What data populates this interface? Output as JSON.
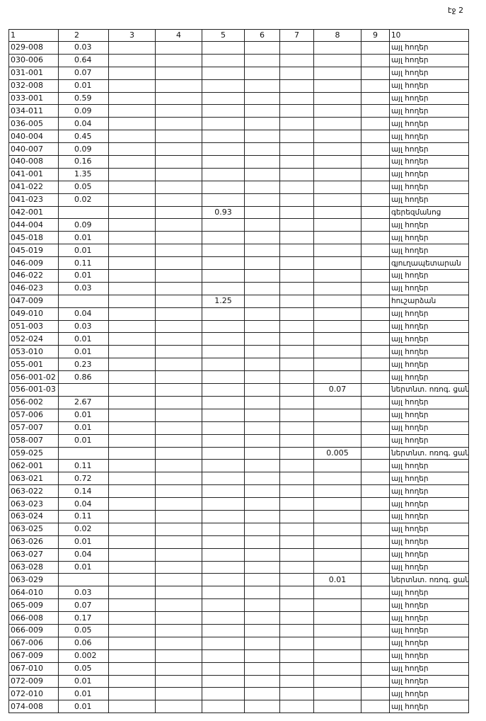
{
  "page_label": "էջ 2",
  "table": {
    "header": [
      "1",
      "2",
      "3",
      "4",
      "5",
      "6",
      "7",
      "8",
      "9",
      "10"
    ],
    "rows": [
      {
        "c1": "029-008",
        "c2": "0.03",
        "c10": "այլ հողեր"
      },
      {
        "c1": "030-006",
        "c2": "0.64",
        "c10": "այլ հողեր"
      },
      {
        "c1": "031-001",
        "c2": "0.07",
        "c10": "այլ հողեր"
      },
      {
        "c1": "032-008",
        "c2": "0.01",
        "c10": "այլ հողեր"
      },
      {
        "c1": "033-001",
        "c2": "0.59",
        "c10": "այլ հողեր"
      },
      {
        "c1": "034-011",
        "c2": "0.09",
        "c10": "այլ հողեր"
      },
      {
        "c1": "036-005",
        "c2": "0.04",
        "c10": "այլ հողեր"
      },
      {
        "c1": "040-004",
        "c2": "0.45",
        "c10": "այլ հողեր"
      },
      {
        "c1": "040-007",
        "c2": "0.09",
        "c10": "այլ հողեր"
      },
      {
        "c1": "040-008",
        "c2": "0.16",
        "c10": "այլ հողեր"
      },
      {
        "c1": "041-001",
        "c2": "1.35",
        "c10": "այլ հողեր"
      },
      {
        "c1": "041-022",
        "c2": "0.05",
        "c10": "այլ հողեր"
      },
      {
        "c1": "041-023",
        "c2": "0.02",
        "c10": "այլ հողեր"
      },
      {
        "c1": "042-001",
        "c5": "0.93",
        "c10": "գերեզմանոց"
      },
      {
        "c1": "044-004",
        "c2": "0.09",
        "c10": "այլ հողեր"
      },
      {
        "c1": "045-018",
        "c2": "0.01",
        "c10": "այլ հողեր"
      },
      {
        "c1": "045-019",
        "c2": "0.01",
        "c10": "այլ հողեր"
      },
      {
        "c1": "046-009",
        "c2": "0.11",
        "c10": "գյուղապետարան"
      },
      {
        "c1": "046-022",
        "c2": "0.01",
        "c10": "այլ հողեր"
      },
      {
        "c1": "046-023",
        "c2": "0.03",
        "c10": "այլ հողեր"
      },
      {
        "c1": "047-009",
        "c5": "1.25",
        "c10": "հուշարձան"
      },
      {
        "c1": "049-010",
        "c2": "0.04",
        "c10": "այլ հողեր"
      },
      {
        "c1": "051-003",
        "c2": "0.03",
        "c10": "այլ հողեր"
      },
      {
        "c1": "052-024",
        "c2": "0.01",
        "c10": "այլ հողեր"
      },
      {
        "c1": "053-010",
        "c2": "0.01",
        "c10": "այլ հողեր"
      },
      {
        "c1": "055-001",
        "c2": "0.23",
        "c10": "այլ հողեր"
      },
      {
        "c1": "056-001-02",
        "c2": "0.86",
        "c10": "այլ հողեր"
      },
      {
        "c1": "056-001-03",
        "c8": "0.07",
        "c10": "ներտնտ. ոռոգ. ցան"
      },
      {
        "c1": "056-002",
        "c2": "2.67",
        "c10": "այլ հողեր"
      },
      {
        "c1": "057-006",
        "c2": "0.01",
        "c10": "այլ հողեր"
      },
      {
        "c1": "057-007",
        "c2": "0.01",
        "c10": "այլ հողեր"
      },
      {
        "c1": "058-007",
        "c2": "0.01",
        "c10": "այլ հողեր"
      },
      {
        "c1": "059-025",
        "c8": "0.005",
        "c10": "ներտնտ. ոռոգ. ցան"
      },
      {
        "c1": "062-001",
        "c2": "0.11",
        "c10": "այլ հողեր"
      },
      {
        "c1": "063-021",
        "c2": "0.72",
        "c10": "այլ հողեր"
      },
      {
        "c1": "063-022",
        "c2": "0.14",
        "c10": "այլ հողեր"
      },
      {
        "c1": "063-023",
        "c2": "0.04",
        "c10": "այլ հողեր"
      },
      {
        "c1": "063-024",
        "c2": "0.11",
        "c10": "այլ հողեր"
      },
      {
        "c1": "063-025",
        "c2": "0.02",
        "c10": "այլ հողեր"
      },
      {
        "c1": "063-026",
        "c2": "0.01",
        "c10": "այլ հողեր"
      },
      {
        "c1": "063-027",
        "c2": "0.04",
        "c10": "այլ հողեր"
      },
      {
        "c1": "063-028",
        "c2": "0.01",
        "c10": "այլ հողեր"
      },
      {
        "c1": "063-029",
        "c8": "0.01",
        "c10": "ներտնտ. ոռոգ. ցան"
      },
      {
        "c1": "064-010",
        "c2": "0.03",
        "c10": "այլ հողեր"
      },
      {
        "c1": "065-009",
        "c2": "0.07",
        "c10": "այլ հողեր"
      },
      {
        "c1": "066-008",
        "c2": "0.17",
        "c10": "այլ հողեր"
      },
      {
        "c1": "066-009",
        "c2": "0.05",
        "c10": "այլ հողեր"
      },
      {
        "c1": "067-006",
        "c2": "0.06",
        "c10": "այլ հողեր"
      },
      {
        "c1": "067-009",
        "c2": "0.002",
        "c10": "այլ հողեր"
      },
      {
        "c1": "067-010",
        "c2": "0.05",
        "c10": "այլ հողեր"
      },
      {
        "c1": "072-009",
        "c2": "0.01",
        "c10": "այլ հողեր"
      },
      {
        "c1": "072-010",
        "c2": "0.01",
        "c10": "այլ հողեր"
      },
      {
        "c1": "074-008",
        "c2": "0.01",
        "c10": "այլ հողեր"
      }
    ]
  }
}
